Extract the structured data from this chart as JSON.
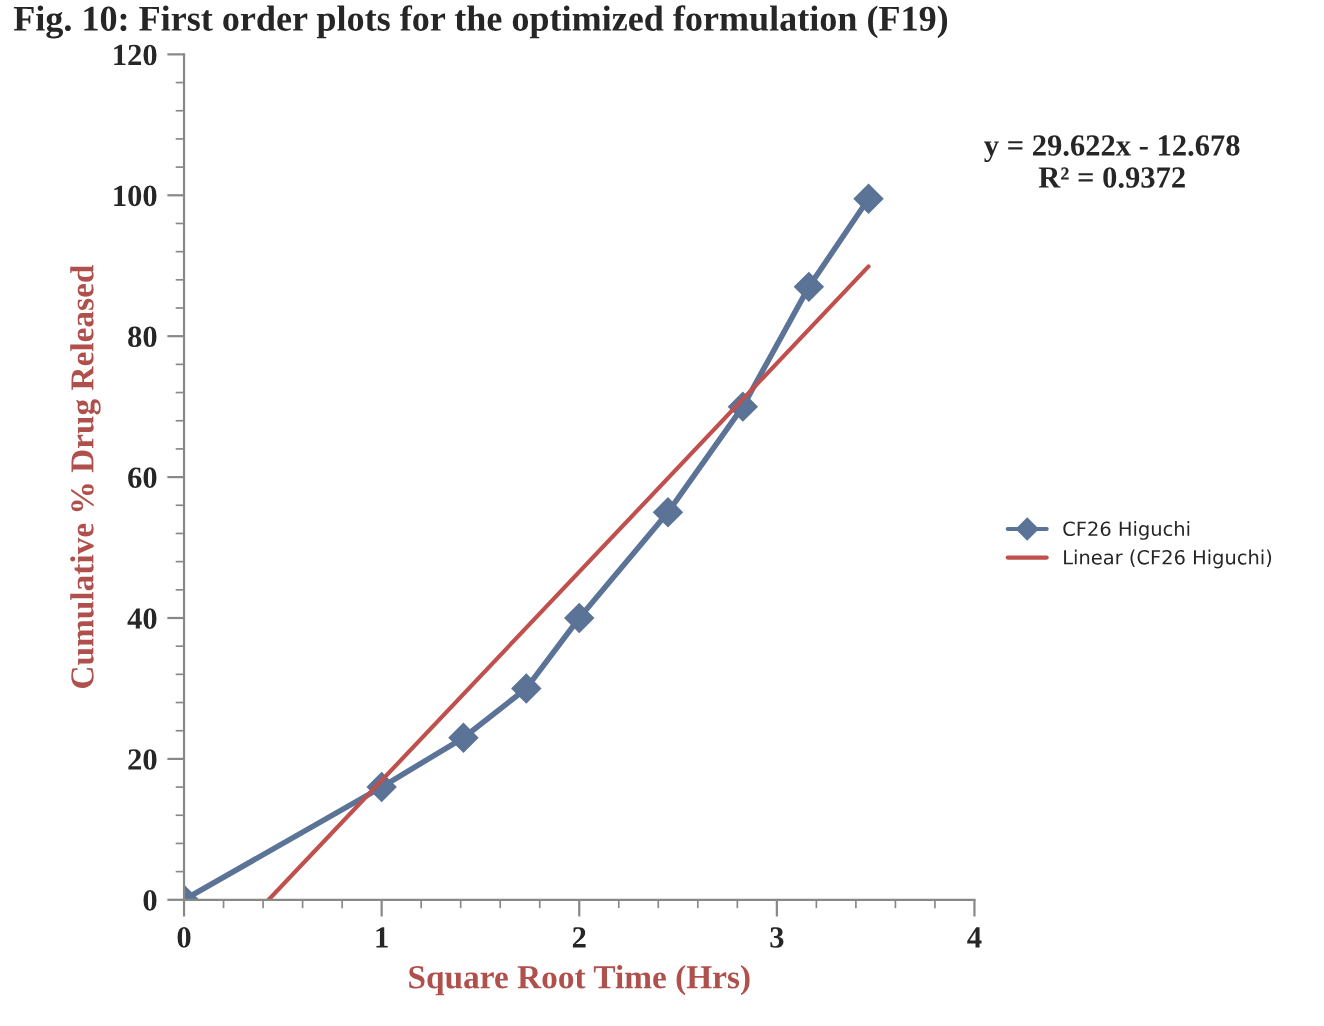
{
  "chart_data": {
    "type": "line",
    "title": "Fig. 10: First order plots for the optimized formulation (F19)",
    "xlabel": "Square Root Time (Hrs)",
    "ylabel": "Cumulative % Drug Released",
    "series": [
      {
        "name": "CF26 Higuchi",
        "color": "#5a7396",
        "x": [
          0,
          1,
          1.414,
          1.732,
          2,
          2.449,
          2.828,
          3.162,
          3.464
        ],
        "values": [
          0,
          16,
          23,
          30,
          40,
          55,
          70,
          87,
          99.5
        ],
        "marker": "diamond"
      },
      {
        "name": "Linear (CF26 Higuchi)",
        "color": "#c0504d",
        "x": [
          0.428,
          3.464
        ],
        "values": [
          0,
          89.9
        ],
        "marker": "none"
      }
    ],
    "annotations": [
      "y = 29.622x - 12.678\nR² = 0.9372"
    ],
    "xlim": [
      0,
      4
    ],
    "xticks": [
      0,
      1,
      2,
      3,
      4
    ],
    "ylim": [
      0,
      120
    ],
    "yticks": [
      0,
      20,
      40,
      60,
      80,
      100,
      120
    ],
    "grid": false,
    "legend": "right",
    "line_style": "solid"
  }
}
